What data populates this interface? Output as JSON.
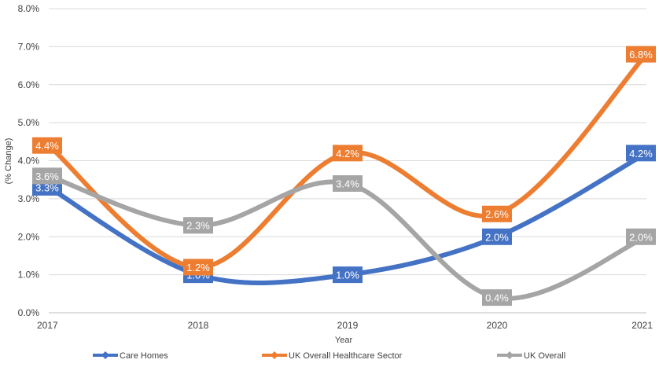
{
  "chart_data": {
    "type": "line",
    "title": "",
    "xlabel": "Year",
    "ylabel": "(% Change)",
    "categories": [
      "2017",
      "2018",
      "2019",
      "2020",
      "2021"
    ],
    "ylim": [
      0,
      8
    ],
    "y_ticks": [
      "0.0%",
      "1.0%",
      "2.0%",
      "3.0%",
      "4.0%",
      "5.0%",
      "6.0%",
      "7.0%",
      "8.0%"
    ],
    "grid": true,
    "smooth": true,
    "legend_position": "bottom",
    "series": [
      {
        "name": "Care Homes",
        "color": "#4472C4",
        "values": [
          3.3,
          1.0,
          1.0,
          2.0,
          4.2
        ],
        "labels": [
          "3.3%",
          "1.0%",
          "1.0%",
          "2.0%",
          "4.2%"
        ]
      },
      {
        "name": "UK Overall Healthcare Sector",
        "color": "#ED7D31",
        "values": [
          4.4,
          1.2,
          4.2,
          2.6,
          6.8
        ],
        "labels": [
          "4.4%",
          "1.2%",
          "4.2%",
          "2.6%",
          "6.8%"
        ]
      },
      {
        "name": "UK Overall",
        "color": "#A5A5A5",
        "values": [
          3.6,
          2.3,
          3.4,
          0.4,
          2.0
        ],
        "labels": [
          "3.6%",
          "2.3%",
          "3.4%",
          "0.4%",
          "2.0%"
        ]
      }
    ]
  }
}
